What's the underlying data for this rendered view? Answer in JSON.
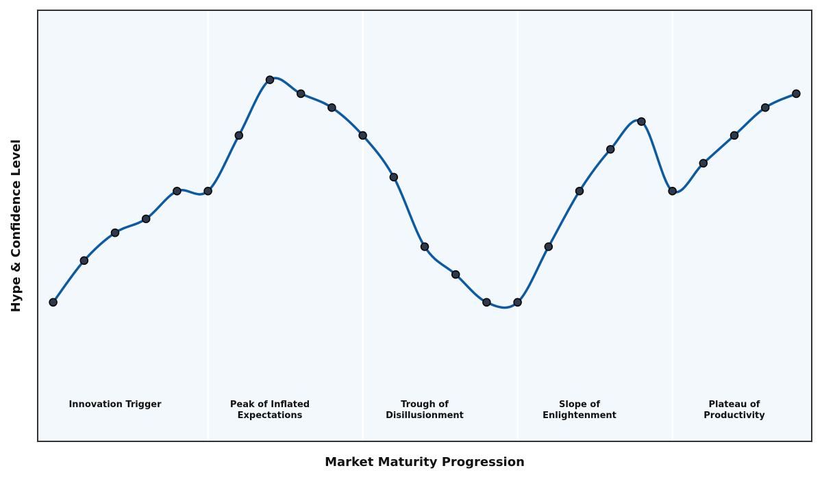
{
  "chart_data": {
    "type": "line",
    "title": "",
    "xlabel": "Market Maturity Progression",
    "ylabel": "Hype & Confidence Level",
    "x": [
      0,
      1,
      2,
      3,
      4,
      5,
      6,
      7,
      8,
      9,
      10,
      11,
      12,
      13,
      14,
      15,
      16,
      17,
      18,
      19,
      20,
      21,
      22,
      23,
      24
    ],
    "values": [
      29,
      32,
      34,
      35,
      37,
      37,
      41,
      45,
      44,
      43,
      41,
      38,
      33,
      31,
      29,
      29,
      33,
      37,
      40,
      42,
      37,
      39,
      41,
      43,
      44
    ],
    "xlim": [
      -0.5,
      24.5
    ],
    "ylim": [
      19,
      50
    ],
    "grid": false,
    "phases": [
      {
        "lines": [
          "Innovation Trigger"
        ],
        "start": -0.5,
        "end": 5,
        "center": 2
      },
      {
        "lines": [
          "Peak of Inflated",
          "Expectations"
        ],
        "start": 5,
        "end": 10,
        "center": 7
      },
      {
        "lines": [
          "Trough of",
          "Disillusionment"
        ],
        "start": 10,
        "end": 15,
        "center": 12
      },
      {
        "lines": [
          "Slope of",
          "Enlightenment"
        ],
        "start": 15,
        "end": 20,
        "center": 17
      },
      {
        "lines": [
          "Plateau of",
          "Productivity"
        ],
        "start": 20,
        "end": 24.5,
        "center": 22
      }
    ],
    "colors": {
      "line": "#0b5aa2",
      "marker_fill": "#2e3a4c",
      "marker_edge": "#000000",
      "background": "#f3f8fc",
      "divider": "#ffffff",
      "frame": "#333333"
    }
  }
}
